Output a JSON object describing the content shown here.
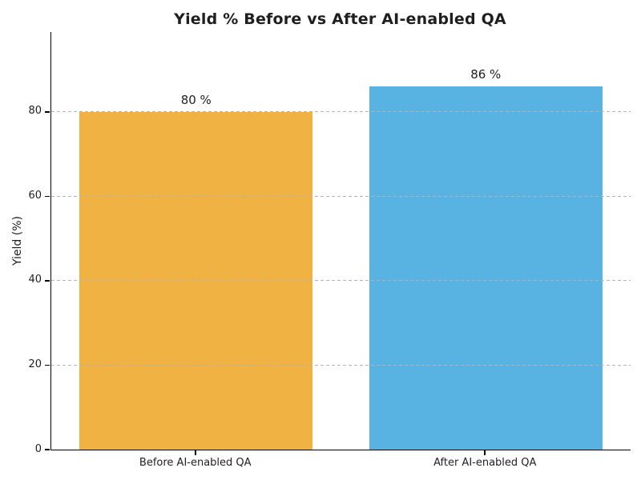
{
  "chart_data": {
    "type": "bar",
    "title": "Yield % Before vs After AI-enabled QA",
    "categories": [
      "Before AI-enabled QA",
      "After AI-enabled QA"
    ],
    "values": [
      80,
      86
    ],
    "bar_value_labels": [
      "80 %",
      "86 %"
    ],
    "xlabel": "",
    "ylabel": "Yield (%)",
    "ylim": [
      0,
      98.9
    ],
    "yticks": [
      0,
      20,
      40,
      60,
      80
    ],
    "grid": "horizontal-dashed",
    "grid_above_bars": true,
    "legend": "none",
    "bar_colors": [
      "#f0b242",
      "#58b2e2"
    ],
    "colors": {
      "title": "#1f1f1f",
      "tick_label": "#1f1f1f",
      "spine": "#000000",
      "grid": "#b3b3b3",
      "background": "#ffffff"
    }
  }
}
